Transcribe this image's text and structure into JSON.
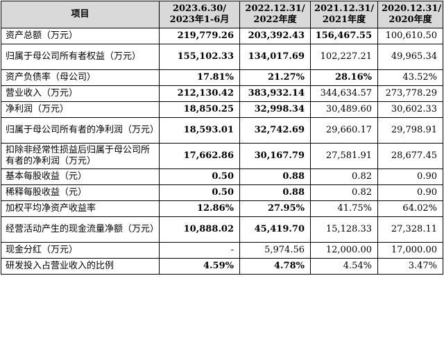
{
  "headers": {
    "item": "项目",
    "c1": [
      "2023.6.30/",
      "2023年1-6月"
    ],
    "c2": [
      "2022.12.31/",
      "2022年度"
    ],
    "c3": [
      "2021.12.31/",
      "2021年度"
    ],
    "c4": [
      "2020.12.31/",
      "2020年度"
    ]
  },
  "rows": [
    {
      "label": "资产总额（万元）",
      "v": [
        "219,779.26",
        "203,392.43",
        "156,467.55",
        "100,610.50"
      ]
    },
    {
      "label": "归属于母公司所有者权益（万元）",
      "v": [
        "155,102.33",
        "134,017.69",
        "102,227.21",
        "49,965.34"
      ]
    },
    {
      "label": "资产负债率（母公司）",
      "v": [
        "17.81%",
        "21.27%",
        "28.16%",
        "43.52%"
      ]
    },
    {
      "label": "营业收入（万元）",
      "v": [
        "212,130.42",
        "383,932.14",
        "344,634.57",
        "273,778.29"
      ]
    },
    {
      "label": "净利润（万元）",
      "v": [
        "18,850.25",
        "32,998.34",
        "30,489.60",
        "30,602.33"
      ]
    },
    {
      "label": "归属于母公司所有者的净利润（万元）",
      "v": [
        "18,593.01",
        "32,742.69",
        "29,660.17",
        "29,798.91"
      ]
    },
    {
      "label": "扣除非经常性损益后归属于母公司所有者的净利润（万元）",
      "v": [
        "17,662.86",
        "30,167.79",
        "27,581.91",
        "28,677.45"
      ]
    },
    {
      "label": "基本每股收益（元）",
      "v": [
        "0.50",
        "0.88",
        "0.82",
        "0.90"
      ]
    },
    {
      "label": "稀释每股收益（元）",
      "v": [
        "0.50",
        "0.88",
        "0.82",
        "0.90"
      ]
    },
    {
      "label": "加权平均净资产收益率",
      "v": [
        "12.86%",
        "27.95%",
        "41.75%",
        "64.02%"
      ]
    },
    {
      "label": "经营活动产生的现金流量净额（万元）",
      "v": [
        "10,888.02",
        "45,419.70",
        "15,128.33",
        "27,328.11"
      ]
    },
    {
      "label": "现金分红（万元）",
      "v": [
        "-",
        "5,974.56",
        "12,000.00",
        "17,000.00"
      ]
    },
    {
      "label": "研发投入占营业收入的比例",
      "v": [
        "4.59%",
        "4.78%",
        "4.54%",
        "3.47%"
      ]
    }
  ]
}
